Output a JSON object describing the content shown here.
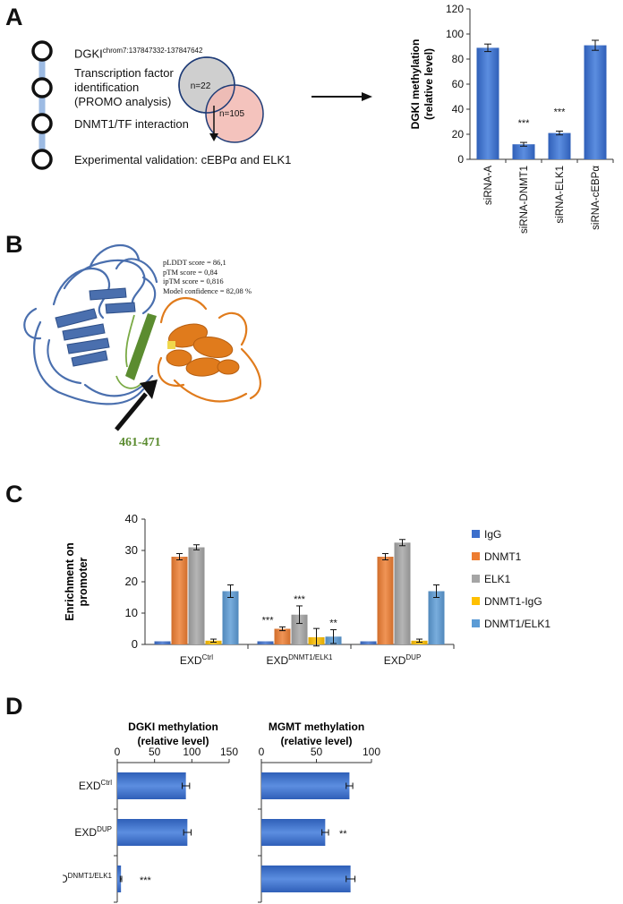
{
  "panels": {
    "A": {
      "letter": "A",
      "workflow": {
        "step1": "DGKI",
        "step1_sup": "chrom7:137847332-137847642",
        "step2_l1": "Transcription factor",
        "step2_l2": "identification",
        "step2_l3": "(PROMO analysis)",
        "step3": "DNMT1/TF interaction",
        "step4": "Experimental validation: cEBPα and ELK1",
        "venn_left": "n=22",
        "venn_right": "n=105"
      }
    },
    "B": {
      "letter": "B",
      "scores": [
        "pLDDT score = 86,1",
        "pTM score = 0,84",
        "ipTM score = 0,816",
        "Model confidence = 82,08 %"
      ],
      "residues": "461-471"
    },
    "C": {
      "letter": "C"
    },
    "D": {
      "letter": "D"
    }
  },
  "colors": {
    "blue": "#3d6fcc",
    "orange": "#ed7d31",
    "gray": "#a5a5a5",
    "yellow": "#ffc000",
    "lightblue": "#5b9bd5",
    "green": "#5b8c30"
  },
  "chart_data": [
    {
      "id": "A",
      "type": "bar",
      "categories": [
        "siRNA-A",
        "siRNA-DNMT1",
        "siRNA-ELK1",
        "siRNA-cEBPα"
      ],
      "values": [
        89,
        12,
        21,
        91
      ],
      "errors": [
        3,
        1.5,
        1.5,
        4
      ],
      "significance": [
        "",
        "***",
        "***",
        ""
      ],
      "ylabel": "DGKI methylation (relative level)",
      "ylabel_l1": "DGKI methylation",
      "ylabel_l2": "(relative level)",
      "ylim": [
        0,
        120
      ],
      "yticks": [
        "0",
        "20",
        "40",
        "60",
        "80",
        "100",
        "120"
      ],
      "grid": false
    },
    {
      "id": "C",
      "type": "bar",
      "categories": [
        "EXD",
        "EXD",
        "EXD"
      ],
      "category_sup": [
        "Ctrl",
        "DNMT1/ELK1",
        "DUP"
      ],
      "series": [
        {
          "name": "IgG",
          "values": [
            1,
            1,
            1
          ],
          "errors": [
            0,
            0,
            0
          ],
          "sig": [
            "",
            "",
            ""
          ]
        },
        {
          "name": "DNMT1",
          "values": [
            28,
            5,
            28
          ],
          "errors": [
            1,
            0.6,
            1
          ],
          "sig": [
            "",
            "***",
            ""
          ]
        },
        {
          "name": "ELK1",
          "values": [
            31,
            9.5,
            32.5
          ],
          "errors": [
            0.8,
            2.8,
            1
          ],
          "sig": [
            "",
            "***",
            ""
          ]
        },
        {
          "name": "DNMT1-IgG",
          "values": [
            1.2,
            2.3,
            1.2
          ],
          "errors": [
            0.5,
            2.8,
            0.5
          ],
          "sig": [
            "",
            "",
            ""
          ]
        },
        {
          "name": "DNMT1/ELK1",
          "values": [
            17,
            2.5,
            17
          ],
          "errors": [
            2,
            2.2,
            2
          ],
          "sig": [
            "",
            "**",
            ""
          ]
        }
      ],
      "ylabel": "Enrichment on promoter",
      "ylabel_l1": "Enrichment on",
      "ylabel_l2": "promoter",
      "ylim": [
        0,
        40
      ],
      "yticks": [
        "0",
        "10",
        "20",
        "30",
        "40"
      ],
      "legend": "right",
      "grid": false
    },
    {
      "id": "D1",
      "type": "bar",
      "orientation": "horizontal",
      "categories": [
        "EXD",
        "EXD",
        "EXD"
      ],
      "category_sup": [
        "Ctrl",
        "DUP",
        "DNMT1/ELK1"
      ],
      "values": [
        92,
        94,
        5
      ],
      "errors": [
        5,
        5,
        1
      ],
      "significance": [
        "",
        "",
        "***"
      ],
      "title_l1": "DGKI methylation",
      "title_l2": "(relative level)",
      "xlim": [
        0,
        150
      ],
      "xticks": [
        "0",
        "50",
        "100",
        "150"
      ]
    },
    {
      "id": "D2",
      "type": "bar",
      "orientation": "horizontal",
      "categories": [
        "EXD",
        "EXD",
        "EXD"
      ],
      "category_sup": [
        "Ctrl",
        "DUP",
        "DNMT1/ELK1"
      ],
      "values": [
        80,
        58,
        81
      ],
      "errors": [
        3,
        3,
        4
      ],
      "significance": [
        "",
        "**",
        ""
      ],
      "title_l1": "MGMT methylation",
      "title_l2": "(relative level)",
      "xlim": [
        0,
        100
      ],
      "xticks": [
        "0",
        "50",
        "100"
      ]
    }
  ]
}
